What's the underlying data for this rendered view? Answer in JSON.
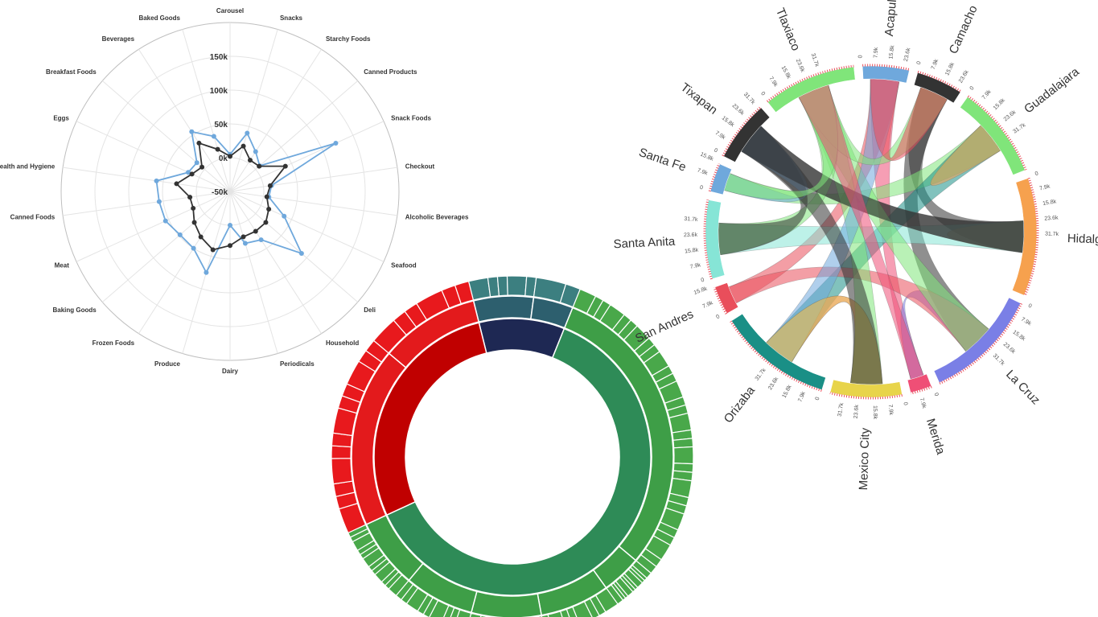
{
  "chart_data": [
    {
      "type": "radar",
      "categories": [
        "Carousel",
        "Snacks",
        "Starchy Foods",
        "Canned Products",
        "Snack Foods",
        "Checkout",
        "Alcoholic Beverages",
        "Seafood",
        "Deli",
        "Household",
        "Periodicals",
        "Dairy",
        "Produce",
        "Frozen Foods",
        "Baking Goods",
        "Meat",
        "Canned Foods",
        "Health and Hygiene",
        "Eggs",
        "Breakfast Foods",
        "Beverages",
        "Baked Goods"
      ],
      "tick_labels": [
        "-50k",
        "0k",
        "50k",
        "100k",
        "150k"
      ],
      "ticks": [
        -50000,
        0,
        50000,
        100000,
        150000
      ],
      "rlim": [
        -50000,
        200000
      ],
      "grid": true,
      "series": [
        {
          "color": "#6fa8dc",
          "values": [
            5000,
            40000,
            20000,
            8000,
            122000,
            12000,
            8000,
            38000,
            90000,
            35000,
            30000,
            0,
            75000,
            50000,
            48000,
            55000,
            56000,
            60000,
            18000,
            15000,
            55000,
            35000
          ]
        },
        {
          "color": "#333333",
          "values": [
            2000,
            20000,
            5000,
            7000,
            40000,
            10000,
            5000,
            13000,
            20000,
            20000,
            20000,
            30000,
            40000,
            30000,
            20000,
            10000,
            10000,
            30000,
            12000,
            5000,
            35000,
            15000
          ]
        }
      ]
    },
    {
      "type": "sunburst",
      "inner_segments": [
        {
          "color": "#1e2853",
          "value": 10
        },
        {
          "color": "#2e8b57",
          "value": 62
        },
        {
          "color": "#c00000",
          "value": 28
        }
      ],
      "middle_segments": [
        {
          "color": "#2d5f6e",
          "value": 6
        },
        {
          "color": "#2d5f6e",
          "value": 4
        },
        {
          "color": "#3e9e47",
          "value": 30
        },
        {
          "color": "#3e9e47",
          "value": 4
        },
        {
          "color": "#3e9e47",
          "value": 7
        },
        {
          "color": "#3e9e47",
          "value": 7
        },
        {
          "color": "#3e9e47",
          "value": 7
        },
        {
          "color": "#3e9e47",
          "value": 7
        },
        {
          "color": "#e31a1c",
          "value": 18
        },
        {
          "color": "#e31a1c",
          "value": 10
        }
      ],
      "outer_counts": [
        5,
        2,
        30,
        10,
        8,
        10,
        9,
        12,
        12,
        6
      ]
    },
    {
      "type": "chord",
      "groups": [
        {
          "name": "Acapulco",
          "color": "#6fa8dc",
          "value": 13
        },
        {
          "name": "Camacho",
          "color": "#333333",
          "value": 13
        },
        {
          "name": "Guadalajara",
          "color": "#80e57a",
          "value": 26
        },
        {
          "name": "Hidalgo",
          "color": "#f6a14e",
          "value": 33
        },
        {
          "name": "La Cruz",
          "color": "#7a7fe6",
          "value": 32
        },
        {
          "name": "Merida",
          "color": "#ef4f76",
          "value": 6
        },
        {
          "name": "Mexico City",
          "color": "#e8d44a",
          "value": 20
        },
        {
          "name": "Orizaba",
          "color": "#1a8f86",
          "value": 32
        },
        {
          "name": "San Andres",
          "color": "#e94e5b",
          "value": 8
        },
        {
          "name": "Santa Anita",
          "color": "#86e5d6",
          "value": 22
        },
        {
          "name": "Santa Fe",
          "color": "#6fa8dc",
          "value": 8
        },
        {
          "name": "Tixapan",
          "color": "#333333",
          "value": 17
        },
        {
          "name": "Tlaxiaco",
          "color": "#80e57a",
          "value": 26
        }
      ],
      "tick_labels": [
        "0",
        "7.9k",
        "15.8k",
        "23.6k",
        "31.7k"
      ],
      "ribbons": [
        {
          "source": "Acapulco",
          "target": "San Andres",
          "color": "#e94e5b"
        },
        {
          "source": "Acapulco",
          "target": "Merida",
          "color": "#ef4f76"
        },
        {
          "source": "Camacho",
          "target": "Hidalgo",
          "color": "#333333"
        },
        {
          "source": "Camacho",
          "target": "La Cruz",
          "color": "#333333"
        },
        {
          "source": "Guadalajara",
          "target": "Santa Fe",
          "color": "#80e57a"
        },
        {
          "source": "Guadalajara",
          "target": "Orizaba",
          "color": "#1a8f86"
        },
        {
          "source": "Guadalajara",
          "target": "Guadalajara",
          "color": "#f6a14e"
        },
        {
          "source": "Hidalgo",
          "target": "Hidalgo",
          "color": "#f6a14e"
        },
        {
          "source": "Hidalgo",
          "target": "Santa Anita",
          "color": "#86e5d6"
        },
        {
          "source": "Hidalgo",
          "target": "Tixapan",
          "color": "#333333"
        },
        {
          "source": "La Cruz",
          "target": "Merida",
          "color": "#7a7fe6"
        },
        {
          "source": "La Cruz",
          "target": "San Andres",
          "color": "#e94e5b"
        },
        {
          "source": "La Cruz",
          "target": "Tlaxiaco",
          "color": "#80e57a"
        },
        {
          "source": "Mexico City",
          "target": "Orizaba",
          "color": "#ef4f76"
        },
        {
          "source": "Mexico City",
          "target": "Tlaxiaco",
          "color": "#80e57a"
        },
        {
          "source": "Orizaba",
          "target": "Acapulco",
          "color": "#6fa8dc"
        },
        {
          "source": "Orizaba",
          "target": "Mexico City",
          "color": "#e8d44a"
        },
        {
          "source": "Santa Anita",
          "target": "Tlaxiaco",
          "color": "#80e57a"
        },
        {
          "source": "Santa Anita",
          "target": "Tixapan",
          "color": "#333333"
        },
        {
          "source": "Santa Fe",
          "target": "Tixapan",
          "color": "#6fa8dc"
        },
        {
          "source": "Tixapan",
          "target": "Mexico City",
          "color": "#333333"
        },
        {
          "source": "Tixapan",
          "target": "Hidalgo",
          "color": "#333333"
        },
        {
          "source": "Tlaxiaco",
          "target": "Camacho",
          "color": "#80e57a"
        },
        {
          "source": "Tlaxiaco",
          "target": "Santa Fe",
          "color": "#80e57a"
        },
        {
          "source": "Acapulco",
          "target": "Camacho",
          "color": "#e94e5b"
        },
        {
          "source": "Merida",
          "target": "Tlaxiaco",
          "color": "#ef4f76"
        }
      ]
    }
  ]
}
